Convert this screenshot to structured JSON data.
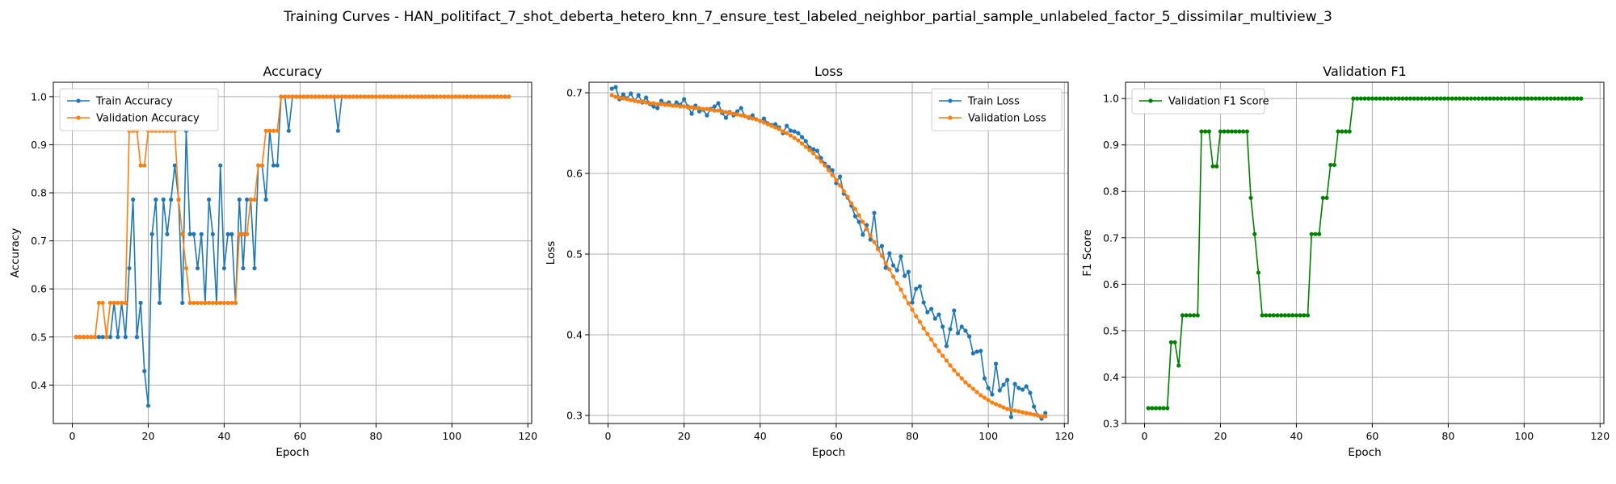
{
  "figure_title": "Training Curves - HAN_politifact_7_shot_deberta_hetero_knn_7_ensure_test_labeled_neighbor_partial_sample_unlabeled_factor_5_dissimilar_multiview_3",
  "colors": {
    "train": "#1f77b4",
    "validation": "#ff7f0e",
    "f1": "#008000"
  },
  "chart_data": [
    {
      "type": "line",
      "title": "Accuracy",
      "xlabel": "Epoch",
      "ylabel": "Accuracy",
      "xlim": [
        -5,
        121
      ],
      "ylim": [
        0.32,
        1.03
      ],
      "xticks": [
        0,
        20,
        40,
        60,
        80,
        100,
        120
      ],
      "yticks": [
        0.4,
        0.5,
        0.6,
        0.7,
        0.8,
        0.9,
        1.0
      ],
      "ytick_labels": [
        "0.4",
        "0.5",
        "0.6",
        "0.7",
        "0.8",
        "0.9",
        "1.0"
      ],
      "grid": true,
      "legend": "upper-left",
      "series": [
        {
          "name": "Train Accuracy",
          "color": "#1f77b4",
          "x_start": 1,
          "values": [
            0.5,
            0.5,
            0.5,
            0.5,
            0.5,
            0.5,
            0.5,
            0.5,
            0.5,
            0.5,
            0.571,
            0.5,
            0.571,
            0.5,
            0.643,
            0.786,
            0.5,
            0.571,
            0.429,
            0.357,
            0.714,
            0.786,
            0.571,
            0.786,
            0.714,
            0.786,
            0.857,
            0.786,
            0.571,
            0.929,
            0.714,
            0.714,
            0.643,
            0.714,
            0.571,
            0.786,
            0.714,
            0.571,
            0.857,
            0.643,
            0.714,
            0.714,
            0.571,
            0.786,
            0.643,
            0.786,
            0.786,
            0.643,
            0.857,
            0.857,
            0.786,
            0.929,
            0.857,
            0.857,
            1.0,
            1.0,
            0.929,
            1.0,
            1.0,
            1.0,
            1.0,
            1.0,
            1.0,
            1.0,
            1.0,
            1.0,
            1.0,
            1.0,
            1.0,
            0.929,
            1.0,
            1.0,
            1.0,
            1.0,
            1.0,
            1.0,
            1.0,
            1.0,
            1.0,
            1.0,
            1.0,
            1.0,
            1.0,
            1.0,
            1.0,
            1.0,
            1.0,
            1.0,
            1.0,
            1.0,
            1.0,
            1.0,
            1.0,
            1.0,
            1.0,
            1.0,
            1.0,
            1.0,
            1.0,
            1.0,
            1.0,
            1.0,
            1.0,
            1.0,
            1.0,
            1.0,
            1.0,
            1.0,
            1.0,
            1.0,
            1.0,
            1.0,
            1.0,
            1.0,
            1.0
          ]
        },
        {
          "name": "Validation Accuracy",
          "color": "#ff7f0e",
          "x_start": 1,
          "values": [
            0.5,
            0.5,
            0.5,
            0.5,
            0.5,
            0.5,
            0.571,
            0.571,
            0.5,
            0.571,
            0.571,
            0.571,
            0.571,
            0.571,
            0.929,
            0.929,
            0.929,
            0.857,
            0.857,
            0.929,
            0.929,
            0.929,
            0.929,
            0.929,
            0.929,
            0.929,
            0.929,
            0.786,
            0.714,
            0.643,
            0.571,
            0.571,
            0.571,
            0.571,
            0.571,
            0.571,
            0.571,
            0.571,
            0.571,
            0.571,
            0.571,
            0.571,
            0.571,
            0.714,
            0.714,
            0.714,
            0.786,
            0.786,
            0.857,
            0.857,
            0.929,
            0.929,
            0.929,
            0.929,
            1.0,
            1.0,
            1.0,
            1.0,
            1.0,
            1.0,
            1.0,
            1.0,
            1.0,
            1.0,
            1.0,
            1.0,
            1.0,
            1.0,
            1.0,
            1.0,
            1.0,
            1.0,
            1.0,
            1.0,
            1.0,
            1.0,
            1.0,
            1.0,
            1.0,
            1.0,
            1.0,
            1.0,
            1.0,
            1.0,
            1.0,
            1.0,
            1.0,
            1.0,
            1.0,
            1.0,
            1.0,
            1.0,
            1.0,
            1.0,
            1.0,
            1.0,
            1.0,
            1.0,
            1.0,
            1.0,
            1.0,
            1.0,
            1.0,
            1.0,
            1.0,
            1.0,
            1.0,
            1.0,
            1.0,
            1.0,
            1.0,
            1.0,
            1.0,
            1.0,
            1.0
          ]
        }
      ]
    },
    {
      "type": "line",
      "title": "Loss",
      "xlabel": "Epoch",
      "ylabel": "Loss",
      "xlim": [
        -5,
        121
      ],
      "ylim": [
        0.29,
        0.713
      ],
      "xticks": [
        0,
        20,
        40,
        60,
        80,
        100,
        120
      ],
      "yticks": [
        0.3,
        0.4,
        0.5,
        0.6,
        0.7
      ],
      "ytick_labels": [
        "0.3",
        "0.4",
        "0.5",
        "0.6",
        "0.7"
      ],
      "grid": true,
      "legend": "upper-right",
      "series": [
        {
          "name": "Train Loss",
          "color": "#1f77b4",
          "x_start": 1,
          "values": [
            0.705,
            0.707,
            0.692,
            0.698,
            0.693,
            0.699,
            0.69,
            0.697,
            0.688,
            0.694,
            0.686,
            0.683,
            0.681,
            0.69,
            0.686,
            0.688,
            0.684,
            0.688,
            0.685,
            0.692,
            0.683,
            0.674,
            0.684,
            0.677,
            0.679,
            0.672,
            0.68,
            0.683,
            0.687,
            0.675,
            0.669,
            0.676,
            0.672,
            0.677,
            0.681,
            0.671,
            0.669,
            0.672,
            0.667,
            0.665,
            0.668,
            0.662,
            0.66,
            0.661,
            0.657,
            0.65,
            0.659,
            0.653,
            0.652,
            0.65,
            0.645,
            0.64,
            0.632,
            0.63,
            0.628,
            0.619,
            0.612,
            0.608,
            0.604,
            0.588,
            0.596,
            0.575,
            0.57,
            0.56,
            0.547,
            0.54,
            0.524,
            0.536,
            0.518,
            0.551,
            0.507,
            0.51,
            0.483,
            0.501,
            0.486,
            0.48,
            0.497,
            0.473,
            0.478,
            0.44,
            0.457,
            0.46,
            0.44,
            0.428,
            0.432,
            0.42,
            0.425,
            0.41,
            0.386,
            0.407,
            0.43,
            0.402,
            0.41,
            0.405,
            0.398,
            0.377,
            0.379,
            0.38,
            0.346,
            0.334,
            0.326,
            0.364,
            0.331,
            0.338,
            0.344,
            0.298,
            0.339,
            0.334,
            0.332,
            0.336,
            0.328,
            0.311,
            0.3,
            0.296,
            0.303
          ]
        },
        {
          "name": "Validation Loss",
          "color": "#ff7f0e",
          "x_start": 1,
          "values": [
            0.697,
            0.695,
            0.694,
            0.693,
            0.692,
            0.691,
            0.69,
            0.689,
            0.689,
            0.688,
            0.687,
            0.687,
            0.686,
            0.686,
            0.685,
            0.685,
            0.684,
            0.684,
            0.683,
            0.683,
            0.682,
            0.682,
            0.681,
            0.681,
            0.68,
            0.68,
            0.679,
            0.678,
            0.678,
            0.677,
            0.676,
            0.675,
            0.674,
            0.673,
            0.672,
            0.671,
            0.67,
            0.668,
            0.667,
            0.665,
            0.663,
            0.661,
            0.659,
            0.657,
            0.655,
            0.652,
            0.65,
            0.647,
            0.644,
            0.641,
            0.637,
            0.633,
            0.629,
            0.625,
            0.62,
            0.615,
            0.61,
            0.604,
            0.598,
            0.592,
            0.585,
            0.578,
            0.571,
            0.563,
            0.556,
            0.548,
            0.54,
            0.531,
            0.523,
            0.515,
            0.506,
            0.498,
            0.489,
            0.481,
            0.472,
            0.464,
            0.456,
            0.447,
            0.439,
            0.431,
            0.423,
            0.416,
            0.408,
            0.401,
            0.394,
            0.387,
            0.38,
            0.374,
            0.368,
            0.362,
            0.356,
            0.351,
            0.346,
            0.341,
            0.337,
            0.333,
            0.329,
            0.325,
            0.322,
            0.319,
            0.316,
            0.314,
            0.312,
            0.31,
            0.308,
            0.307,
            0.306,
            0.305,
            0.304,
            0.303,
            0.302,
            0.301,
            0.3,
            0.299,
            0.299
          ]
        }
      ]
    },
    {
      "type": "line",
      "title": "Validation F1",
      "xlabel": "Epoch",
      "ylabel": "F1 Score",
      "xlim": [
        -5,
        121
      ],
      "ylim": [
        0.3,
        1.035
      ],
      "xticks": [
        0,
        20,
        40,
        60,
        80,
        100,
        120
      ],
      "yticks": [
        0.3,
        0.4,
        0.5,
        0.6,
        0.7,
        0.8,
        0.9,
        1.0
      ],
      "ytick_labels": [
        "0.3",
        "0.4",
        "0.5",
        "0.6",
        "0.7",
        "0.8",
        "0.9",
        "1.0"
      ],
      "grid": true,
      "legend": "upper-left",
      "series": [
        {
          "name": "Validation F1 Score",
          "color": "#008000",
          "x_start": 1,
          "values": [
            0.333,
            0.333,
            0.333,
            0.333,
            0.333,
            0.333,
            0.475,
            0.475,
            0.425,
            0.533,
            0.533,
            0.533,
            0.533,
            0.533,
            0.929,
            0.929,
            0.929,
            0.854,
            0.854,
            0.929,
            0.929,
            0.929,
            0.929,
            0.929,
            0.929,
            0.929,
            0.929,
            0.786,
            0.708,
            0.625,
            0.533,
            0.533,
            0.533,
            0.533,
            0.533,
            0.533,
            0.533,
            0.533,
            0.533,
            0.533,
            0.533,
            0.533,
            0.533,
            0.708,
            0.708,
            0.708,
            0.786,
            0.786,
            0.857,
            0.857,
            0.929,
            0.929,
            0.929,
            0.929,
            1.0,
            1.0,
            1.0,
            1.0,
            1.0,
            1.0,
            1.0,
            1.0,
            1.0,
            1.0,
            1.0,
            1.0,
            1.0,
            1.0,
            1.0,
            1.0,
            1.0,
            1.0,
            1.0,
            1.0,
            1.0,
            1.0,
            1.0,
            1.0,
            1.0,
            1.0,
            1.0,
            1.0,
            1.0,
            1.0,
            1.0,
            1.0,
            1.0,
            1.0,
            1.0,
            1.0,
            1.0,
            1.0,
            1.0,
            1.0,
            1.0,
            1.0,
            1.0,
            1.0,
            1.0,
            1.0,
            1.0,
            1.0,
            1.0,
            1.0,
            1.0,
            1.0,
            1.0,
            1.0,
            1.0,
            1.0,
            1.0,
            1.0,
            1.0,
            1.0,
            1.0
          ]
        }
      ]
    }
  ]
}
